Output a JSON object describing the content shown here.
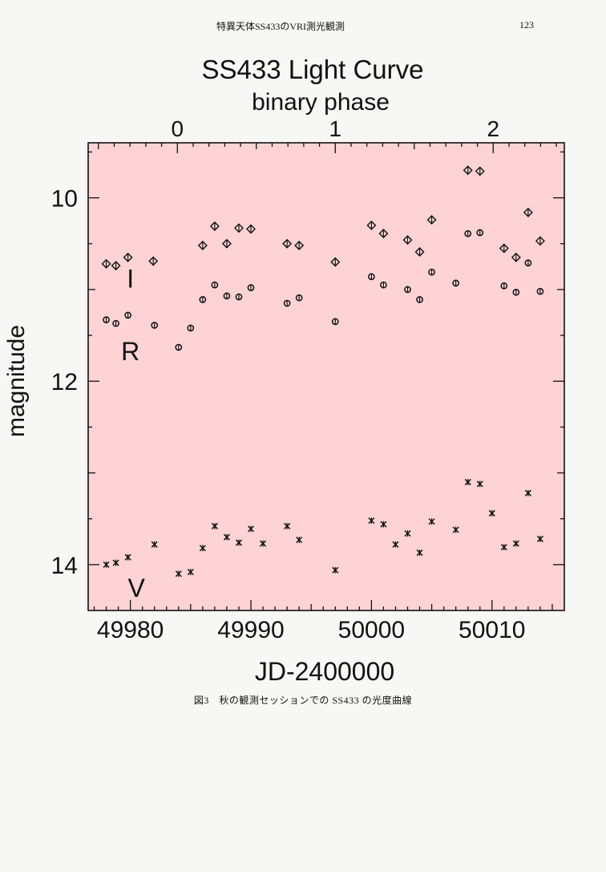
{
  "header": {
    "title": "特異天体SS433のVRI測光観測",
    "page_number": "123"
  },
  "caption": "図3　秋の観測セッションでの SS433 の光度曲線",
  "chart_data": {
    "type": "scatter",
    "title": "SS433  Light Curve",
    "xlabel": "JD-2400000",
    "ylabel": "magnitude",
    "secondary_xlabel": "binary phase",
    "xlim": [
      49976.5,
      50016
    ],
    "ylim": [
      14.5,
      9.4
    ],
    "y_inverted": true,
    "x_ticks": [
      49980,
      49990,
      50000,
      50010
    ],
    "y_ticks": [
      10,
      12,
      14
    ],
    "secondary_x_ticks": [
      {
        "label": "0",
        "jd": 49983.9
      },
      {
        "label": "1",
        "jd": 49997.0
      },
      {
        "label": "2",
        "jd": 50010.1
      }
    ],
    "background_color": "#fdd3d5",
    "grid": false,
    "series": [
      {
        "name": "I",
        "marker": "diamond",
        "points": [
          [
            49978.0,
            10.72
          ],
          [
            49978.8,
            10.74
          ],
          [
            49979.8,
            10.65
          ],
          [
            49981.9,
            10.69
          ],
          [
            49986.0,
            10.52
          ],
          [
            49987.0,
            10.31
          ],
          [
            49988.0,
            10.5
          ],
          [
            49989.0,
            10.33
          ],
          [
            49990.0,
            10.34
          ],
          [
            49993.0,
            10.5
          ],
          [
            49994.0,
            10.52
          ],
          [
            49997.0,
            10.7
          ],
          [
            50000.0,
            10.3
          ],
          [
            50001.0,
            10.39
          ],
          [
            50003.0,
            10.46
          ],
          [
            50004.0,
            10.59
          ],
          [
            50005.0,
            10.24
          ],
          [
            50008.0,
            9.7
          ],
          [
            50009.0,
            9.71
          ],
          [
            50011.0,
            10.55
          ],
          [
            50012.0,
            10.65
          ],
          [
            50013.0,
            10.16
          ],
          [
            50014.0,
            10.47
          ]
        ]
      },
      {
        "name": "R",
        "marker": "circle",
        "points": [
          [
            49978.0,
            11.33
          ],
          [
            49978.8,
            11.37
          ],
          [
            49979.8,
            11.28
          ],
          [
            49982.0,
            11.39
          ],
          [
            49984.0,
            11.63
          ],
          [
            49985.0,
            11.42
          ],
          [
            49986.0,
            11.11
          ],
          [
            49987.0,
            10.95
          ],
          [
            49988.0,
            11.07
          ],
          [
            49989.0,
            11.08
          ],
          [
            49990.0,
            10.98
          ],
          [
            49993.0,
            11.15
          ],
          [
            49994.0,
            11.09
          ],
          [
            49997.0,
            11.35
          ],
          [
            50000.0,
            10.86
          ],
          [
            50001.0,
            10.95
          ],
          [
            50003.0,
            11.0
          ],
          [
            50004.0,
            11.11
          ],
          [
            50005.0,
            10.81
          ],
          [
            50007.0,
            10.93
          ],
          [
            50008.0,
            10.39
          ],
          [
            50009.0,
            10.38
          ],
          [
            50011.0,
            10.96
          ],
          [
            50012.0,
            11.03
          ],
          [
            50013.0,
            10.71
          ],
          [
            50014.0,
            11.02
          ]
        ]
      },
      {
        "name": "V",
        "marker": "x",
        "points": [
          [
            49978.0,
            14.0
          ],
          [
            49978.8,
            13.98
          ],
          [
            49979.8,
            13.92
          ],
          [
            49982.0,
            13.78
          ],
          [
            49984.0,
            14.1
          ],
          [
            49985.0,
            14.08
          ],
          [
            49986.0,
            13.82
          ],
          [
            49987.0,
            13.58
          ],
          [
            49988.0,
            13.7
          ],
          [
            49989.0,
            13.76
          ],
          [
            49990.0,
            13.61
          ],
          [
            49991.0,
            13.77
          ],
          [
            49993.0,
            13.58
          ],
          [
            49994.0,
            13.73
          ],
          [
            49997.0,
            14.06
          ],
          [
            50000.0,
            13.52
          ],
          [
            50001.0,
            13.56
          ],
          [
            50002.0,
            13.78
          ],
          [
            50003.0,
            13.66
          ],
          [
            50004.0,
            13.87
          ],
          [
            50005.0,
            13.53
          ],
          [
            50007.0,
            13.62
          ],
          [
            50008.0,
            13.1
          ],
          [
            50009.0,
            13.12
          ],
          [
            50010.0,
            13.44
          ],
          [
            50011.0,
            13.81
          ],
          [
            50012.0,
            13.77
          ],
          [
            50013.0,
            13.22
          ],
          [
            50014.0,
            13.72
          ]
        ]
      }
    ]
  }
}
